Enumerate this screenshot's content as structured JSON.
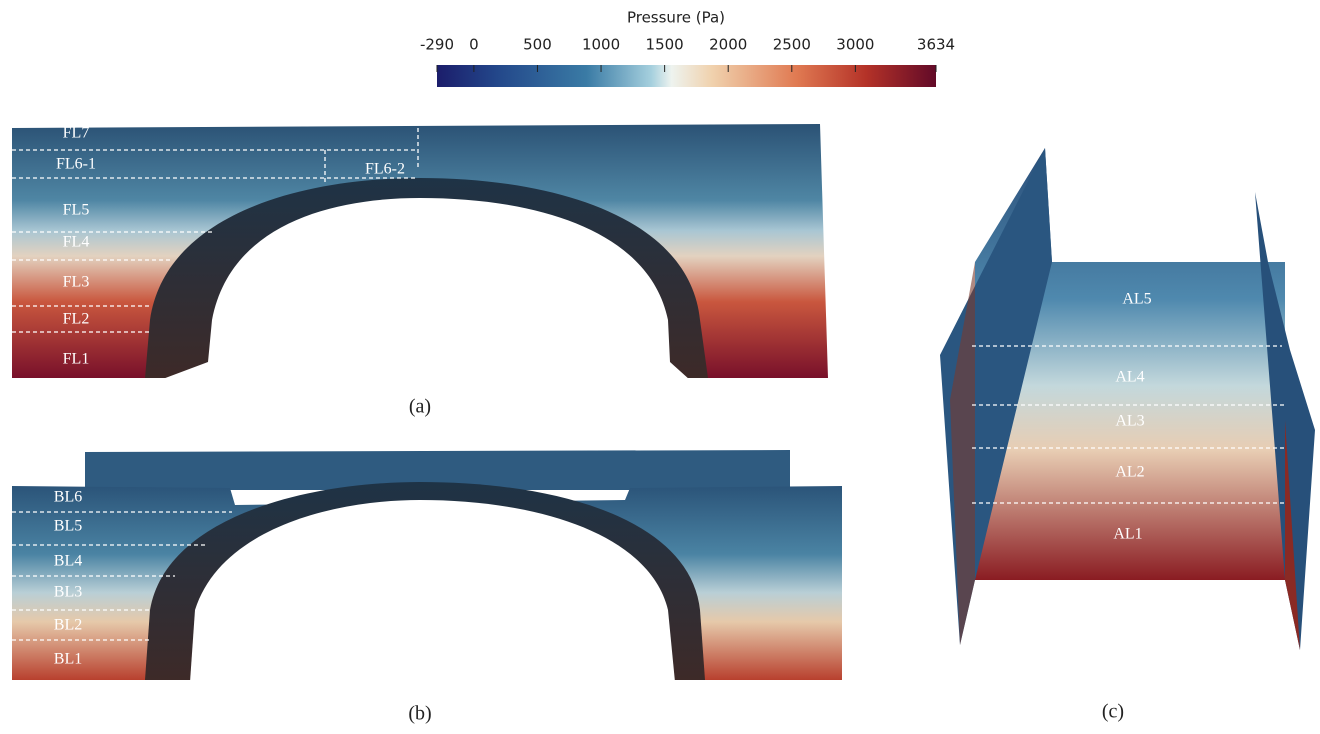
{
  "colorbar": {
    "title": "Pressure (Pa)",
    "range": [
      -290,
      3634
    ],
    "ticks": [
      -290,
      0,
      500,
      1000,
      1500,
      2000,
      2500,
      3000,
      3634
    ]
  },
  "panels": [
    {
      "caption": "(a)",
      "labels": [
        "FL7",
        "FL6-1",
        "FL6-2",
        "FL5",
        "FL4",
        "FL3",
        "FL2",
        "FL1"
      ]
    },
    {
      "caption": "(b)",
      "labels": [
        "BL6",
        "BL5",
        "BL4",
        "BL3",
        "BL2",
        "BL1"
      ]
    },
    {
      "caption": "(c)",
      "labels": [
        "AL5",
        "AL4",
        "AL3",
        "AL2",
        "AL1"
      ]
    }
  ]
}
